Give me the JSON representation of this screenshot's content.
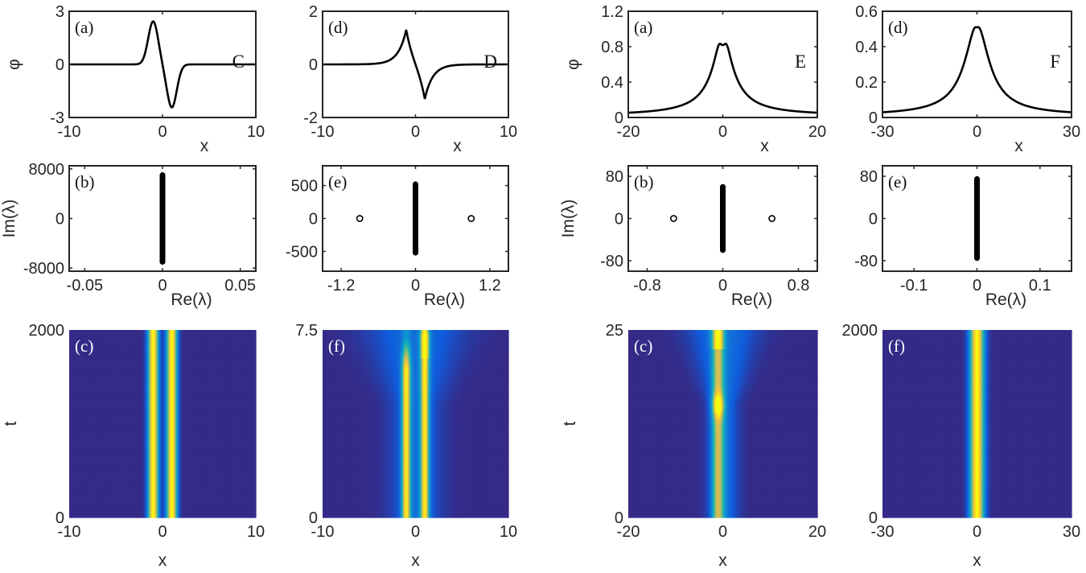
{
  "figure": {
    "colormap": [
      "#352a87",
      "#0f5cdd",
      "#1481d6",
      "#06a4ca",
      "#2eb7a4",
      "#87bf77",
      "#d1bb59",
      "#fec832",
      "#f9fb0e"
    ],
    "frame_color": "#262626",
    "curve_color": "#000000"
  },
  "chart_data": [
    {
      "id": "C-a",
      "type": "line",
      "panel_label": "(a)",
      "tag": "C",
      "xlabel": "x",
      "ylabel": "φ",
      "xlim": [
        -10,
        10
      ],
      "ylim": [
        -3,
        3
      ],
      "xticks": [
        -10,
        0,
        10
      ],
      "yticks": [
        -3,
        0,
        3
      ],
      "xtick_labels": [
        "-10",
        "0",
        "10"
      ],
      "ytick_labels": [
        "-3",
        "0",
        "3"
      ],
      "profile": {
        "kind": "dipole",
        "amplitude": 2.45,
        "center": 1.0,
        "width": 0.75
      },
      "description": "Antisymmetric profile: peak ~2.45 at x≈-1, trough ~-2.35 at x≈1"
    },
    {
      "id": "D-d",
      "type": "line",
      "panel_label": "(d)",
      "tag": "D",
      "xlabel": "x",
      "ylabel": "",
      "xlim": [
        -10,
        10
      ],
      "ylim": [
        -2,
        2
      ],
      "xticks": [
        -10,
        0,
        10
      ],
      "yticks": [
        -2,
        0,
        2
      ],
      "xtick_labels": [
        "-10",
        "0",
        "10"
      ],
      "ytick_labels": [
        "-2",
        "0",
        "2"
      ],
      "profile": {
        "kind": "cusp-dipole",
        "amplitude": 1.3,
        "center": 1.0,
        "width": 1.2
      },
      "description": "Antisymmetric cusp profile: peak ~1.3 at x≈-1, trough ~-1.25 at x≈1"
    },
    {
      "id": "E-a",
      "type": "line",
      "panel_label": "(a)",
      "tag": "E",
      "xlabel": "x",
      "ylabel": "φ",
      "xlim": [
        -20,
        20
      ],
      "ylim": [
        0,
        1.2
      ],
      "xticks": [
        -20,
        0,
        20
      ],
      "yticks": [
        0,
        0.4,
        0.8,
        1.2
      ],
      "xtick_labels": [
        "-20",
        "0",
        "20"
      ],
      "ytick_labels": [
        "0",
        "0.4",
        "0.8",
        "1.2"
      ],
      "profile": {
        "kind": "double-hump",
        "amplitude": 0.9,
        "dip": 0.73,
        "center": 1.0,
        "width": 2.5,
        "baseline": 0.02
      },
      "description": "Double-humped profile with peaks ~0.9 at x≈±1, dip ~0.73 at x=0"
    },
    {
      "id": "F-d",
      "type": "line",
      "panel_label": "(d)",
      "tag": "F",
      "xlabel": "x",
      "ylabel": "",
      "xlim": [
        -30,
        30
      ],
      "ylim": [
        0,
        0.6
      ],
      "xticks": [
        -30,
        0,
        30
      ],
      "yticks": [
        0,
        0.2,
        0.4,
        0.6
      ],
      "xtick_labels": [
        "-30",
        "0",
        "30"
      ],
      "ytick_labels": [
        "0",
        "0.2",
        "0.4",
        "0.6"
      ],
      "profile": {
        "kind": "flat-top",
        "amplitude": 0.51,
        "center": 0.5,
        "width": 4.5,
        "baseline": 0.01
      },
      "description": "Single flat-topped peak ~0.51 at x=0"
    },
    {
      "id": "C-b",
      "type": "scatter",
      "panel_label": "(b)",
      "xlabel": "Re(λ)",
      "ylabel": "Im(λ)",
      "xlim": [
        -0.06,
        0.06
      ],
      "ylim": [
        -8500,
        8500
      ],
      "xticks": [
        -0.05,
        0,
        0.05
      ],
      "yticks": [
        -8000,
        0,
        8000
      ],
      "xtick_labels": [
        "-0.05",
        "0",
        "0.05"
      ],
      "ytick_labels": [
        "-8000",
        "0",
        "8000"
      ],
      "continuous_spectrum": {
        "re": 0,
        "im_range": [
          -7000,
          7000
        ]
      },
      "discrete_points": []
    },
    {
      "id": "D-e",
      "type": "scatter",
      "panel_label": "(e)",
      "xlabel": "Re(λ)",
      "ylabel": "",
      "xlim": [
        -1.5,
        1.5
      ],
      "ylim": [
        -800,
        800
      ],
      "xticks": [
        -1.2,
        0,
        1.2
      ],
      "yticks": [
        -500,
        0,
        500
      ],
      "xtick_labels": [
        "-1.2",
        "0",
        "1.2"
      ],
      "ytick_labels": [
        "-500",
        "0",
        "500"
      ],
      "continuous_spectrum": {
        "re": 0,
        "im_range": [
          -520,
          520
        ]
      },
      "discrete_points": [
        {
          "re": -0.9,
          "im": 0
        },
        {
          "re": 0.9,
          "im": 0
        }
      ]
    },
    {
      "id": "E-b",
      "type": "scatter",
      "panel_label": "(b)",
      "xlabel": "Re(λ)",
      "ylabel": "Im(λ)",
      "xlim": [
        -1.0,
        1.0
      ],
      "ylim": [
        -100,
        100
      ],
      "xticks": [
        -0.8,
        0,
        0.8
      ],
      "yticks": [
        -80,
        0,
        80
      ],
      "xtick_labels": [
        "-0.8",
        "0",
        "0.8"
      ],
      "ytick_labels": [
        "-80",
        "0",
        "80"
      ],
      "continuous_spectrum": {
        "re": 0,
        "im_range": [
          -60,
          60
        ]
      },
      "discrete_points": [
        {
          "re": -0.52,
          "im": 0
        },
        {
          "re": 0.52,
          "im": 0
        }
      ]
    },
    {
      "id": "F-e",
      "type": "scatter",
      "panel_label": "(e)",
      "xlabel": "Re(λ)",
      "ylabel": "",
      "xlim": [
        -0.15,
        0.15
      ],
      "ylim": [
        -100,
        100
      ],
      "xticks": [
        -0.1,
        0,
        0.1
      ],
      "yticks": [
        -80,
        0,
        80
      ],
      "xtick_labels": [
        "-0.1",
        "0",
        "0.1"
      ],
      "ytick_labels": [
        "-80",
        "0",
        "80"
      ],
      "continuous_spectrum": {
        "re": 0,
        "im_range": [
          -75,
          75
        ]
      },
      "discrete_points": []
    },
    {
      "id": "C-c",
      "type": "heatmap",
      "panel_label": "(c)",
      "xlabel": "x",
      "ylabel": "t",
      "xlim": [
        -10,
        10
      ],
      "ylim": [
        0,
        2000
      ],
      "xticks": [
        -10,
        0,
        10
      ],
      "yticks": [
        0,
        2000
      ],
      "xtick_labels": [
        "-10",
        "0",
        "10"
      ],
      "ytick_labels": [
        "0",
        "2000"
      ],
      "evolution": {
        "kind": "stable-dual",
        "beams": [
          -1.0,
          1.0
        ],
        "beam_width": 0.55,
        "peak_level": 1.0
      },
      "description": "Two stable bright bands at x≈±1 over full time range"
    },
    {
      "id": "D-f",
      "type": "heatmap",
      "panel_label": "(f)",
      "xlabel": "x",
      "ylabel": "",
      "xlim": [
        -10,
        10
      ],
      "ylim": [
        0,
        7.5
      ],
      "xticks": [
        -10,
        0,
        10
      ],
      "yticks": [
        0,
        7.5
      ],
      "xtick_labels": [
        "-10",
        "0",
        "10"
      ],
      "ytick_labels": [
        "0",
        "7.5"
      ],
      "evolution": {
        "kind": "unstable-dual",
        "beams": [
          -1.0,
          1.0
        ],
        "beam_width": 0.45,
        "peak_level": 0.82,
        "breakup_t": 5.5
      },
      "description": "Two bands at x≈±1 that broaden and decay near t≈5.5–7.5"
    },
    {
      "id": "E-c",
      "type": "heatmap",
      "panel_label": "(c)",
      "xlabel": "x",
      "ylabel": "t",
      "xlim": [
        -20,
        20
      ],
      "ylim": [
        0,
        25
      ],
      "xticks": [
        -20,
        0,
        20
      ],
      "yticks": [
        0,
        25
      ],
      "xtick_labels": [
        "-20",
        "0",
        "20"
      ],
      "ytick_labels": [
        "0",
        "25"
      ],
      "evolution": {
        "kind": "unstable-single",
        "beams": [
          -1.0
        ],
        "beam_width": 1.2,
        "peak_level": 0.6,
        "focus_t": 15
      },
      "description": "Central band near x≈-1 that focuses to a bright spot near t≈15, with radiation spreading outward"
    },
    {
      "id": "F-f",
      "type": "heatmap",
      "panel_label": "(f)",
      "xlabel": "x",
      "ylabel": "",
      "xlim": [
        -30,
        30
      ],
      "ylim": [
        0,
        2000
      ],
      "xticks": [
        -30,
        0,
        30
      ],
      "yticks": [
        0,
        2000
      ],
      "xtick_labels": [
        "-30",
        "0",
        "30"
      ],
      "ytick_labels": [
        "0",
        "2000"
      ],
      "evolution": {
        "kind": "stable-single",
        "beams": [
          0
        ],
        "beam_width": 2.2,
        "peak_level": 1.0
      },
      "description": "Single stable bright band at x=0 over full time range"
    }
  ]
}
